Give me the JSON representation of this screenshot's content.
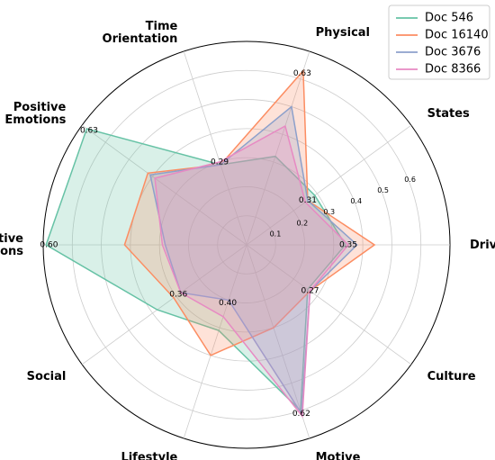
{
  "chart_data": {
    "type": "radar",
    "axes": [
      "Drives",
      "States",
      "Physical",
      "Time\nOrientation",
      "Positive\nEmotions",
      "Negative\nEmotions",
      "Social",
      "Lifestyle",
      "Motive",
      "Culture"
    ],
    "rmax": 0.7,
    "rings": [
      0.1,
      0.2,
      0.3,
      0.4,
      0.5,
      0.6
    ],
    "grid": true,
    "legend": "top-right",
    "series": [
      {
        "name": "Doc 546",
        "color": "#66c2a5",
        "values": [
          0.34,
          0.29,
          0.32,
          0.29,
          0.68,
          0.69,
          0.38,
          0.31,
          0.6,
          0.26
        ]
      },
      {
        "name": "Doc 16140",
        "color": "#fc8d62",
        "values": [
          0.44,
          0.26,
          0.63,
          0.29,
          0.42,
          0.42,
          0.31,
          0.4,
          0.3,
          0.27
        ]
      },
      {
        "name": "Doc 3676",
        "color": "#8da0cb",
        "values": [
          0.38,
          0.26,
          0.5,
          0.29,
          0.41,
          0.28,
          0.28,
          0.2,
          0.61,
          0.27
        ]
      },
      {
        "name": "Doc 8366",
        "color": "#e78ac3",
        "values": [
          0.35,
          0.25,
          0.43,
          0.3,
          0.39,
          0.29,
          0.28,
          0.26,
          0.62,
          0.27
        ]
      }
    ],
    "value_labels": [
      {
        "axis": 0,
        "text": "0.35"
      },
      {
        "axis": 1,
        "text": "0.31"
      },
      {
        "axis": 2,
        "text": "0.63"
      },
      {
        "axis": 3,
        "text": "0.29"
      },
      {
        "axis": 4,
        "text": "0.63"
      },
      {
        "axis": 5,
        "text": "0.60"
      },
      {
        "axis": 6,
        "text": "0.36"
      },
      {
        "axis": 7,
        "text": "0.40"
      },
      {
        "axis": 8,
        "text": "0.62"
      },
      {
        "axis": 9,
        "text": "0.27"
      }
    ]
  }
}
